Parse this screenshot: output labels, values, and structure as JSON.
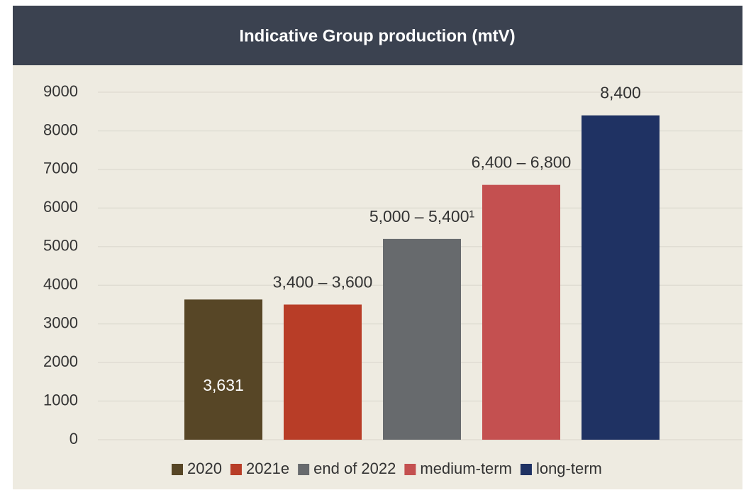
{
  "chart_data": {
    "type": "bar",
    "title": "Indicative Group production (mtV)",
    "categories": [
      "2020",
      "2021e",
      "end of 2022",
      "medium-term",
      "long-term"
    ],
    "values": [
      3631,
      3500,
      5200,
      6600,
      8400
    ],
    "value_labels": [
      "3,631",
      "3,400 – 3,600",
      "5,000 – 5,400¹",
      "6,400 – 6,800",
      "8,400"
    ],
    "colors": [
      "#574626",
      "#b83d27",
      "#676a6d",
      "#c45050",
      "#1f3263"
    ],
    "ylim": [
      0,
      9000
    ],
    "yticks": [
      0,
      1000,
      2000,
      3000,
      4000,
      5000,
      6000,
      7000,
      8000,
      9000
    ],
    "grid": true,
    "legend": "bottom"
  }
}
